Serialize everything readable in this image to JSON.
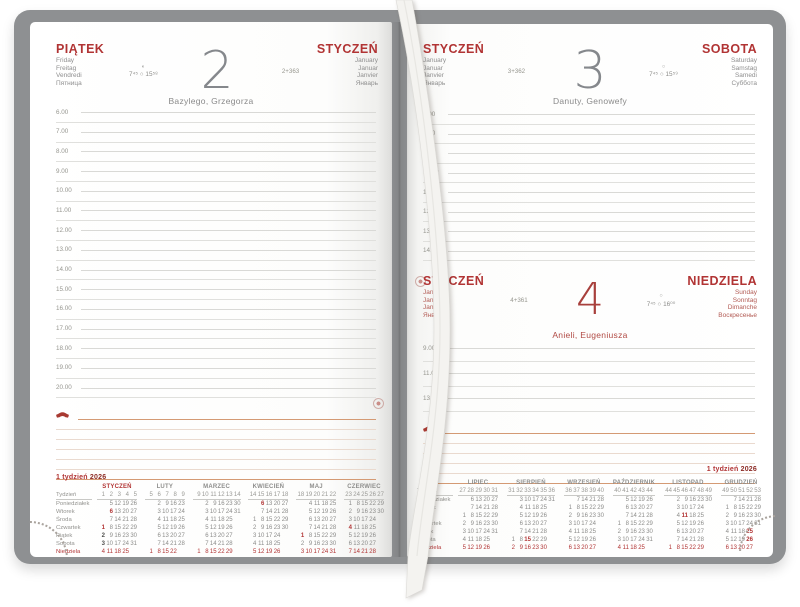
{
  "diary": {
    "week_label": {
      "text": "1 tydzień",
      "year": "2026"
    },
    "days": [
      {
        "weekday": "PIĄTEK",
        "weekday_translations": [
          "Friday",
          "Freitag",
          "Vendredi",
          "Пятница"
        ],
        "month": "STYCZEŃ",
        "month_translations": [
          "January",
          "Januar",
          "Janvier",
          "Январь"
        ],
        "number": "2",
        "ordinal": "2+363",
        "moon": "◐",
        "sunrise": "7⁴⁵",
        "sun": "○",
        "sunset": "15⁵⁸",
        "name_days": "Bazylego, Grzegorza",
        "hours": [
          "6.00",
          "7.00",
          "8.00",
          "9.00",
          "10.00",
          "11.00",
          "12.00",
          "13.00",
          "14.00",
          "15.00",
          "16.00",
          "17.00",
          "18.00",
          "19.00",
          "20.00"
        ]
      },
      {
        "weekday": "SOBOTA",
        "weekday_translations": [
          "Saturday",
          "Samstag",
          "Samedi",
          "Суббота"
        ],
        "month": "STYCZEŃ",
        "month_translations": [
          "January",
          "Januar",
          "Janvier",
          "Январь"
        ],
        "number": "3",
        "ordinal": "3+362",
        "moon": "○",
        "sunrise": "7⁴⁵",
        "sun": "○",
        "sunset": "15⁵⁹",
        "name_days": "Danuty, Genowefy",
        "hours": [
          "7.00",
          "8.00",
          "9.00",
          "10.00",
          "11.00",
          "12.00",
          "13.00",
          "14.00"
        ]
      },
      {
        "weekday": "NIEDZIELA",
        "weekday_translations": [
          "Sunday",
          "Sonntag",
          "Dimanche",
          "Воскресенье"
        ],
        "month": "STYCZEŃ",
        "month_translations": [
          "January",
          "Januar",
          "Janvier",
          "Январь"
        ],
        "number": "4",
        "ordinal": "4+361",
        "moon": "○",
        "sunrise": "7⁴⁵",
        "sun": "○",
        "sunset": "16⁰⁰",
        "name_days": "Anieli, Eugeniusza",
        "hours": [
          "9.00",
          "11.00",
          "13.00"
        ]
      }
    ],
    "calendar_block": {
      "weekday_labels": [
        "Tydzień",
        "Poniedziałek",
        "Wtorek",
        "Środa",
        "Czwartek",
        "Piątek",
        "Sobota",
        "Niedziela"
      ],
      "left_months": [
        {
          "name": "STYCZEŃ",
          "current": true,
          "weeks": [
            "1",
            "2",
            "3",
            "4",
            "5"
          ],
          "rows": [
            [
              "",
              "5",
              "12",
              "19",
              "26"
            ],
            [
              "",
              "6",
              "13",
              "20",
              "27"
            ],
            [
              "",
              "7",
              "14",
              "21",
              "28"
            ],
            [
              "1",
              "8",
              "15",
              "22",
              "29"
            ],
            [
              "2",
              "9",
              "16",
              "23",
              "30"
            ],
            [
              "3",
              "10",
              "17",
              "24",
              "31"
            ],
            [
              "4",
              "11",
              "18",
              "25",
              ""
            ]
          ],
          "red": [
            "1",
            "6"
          ],
          "cur": [
            "2",
            "3"
          ]
        },
        {
          "name": "LUTY",
          "weeks": [
            "5",
            "6",
            "7",
            "8",
            "9"
          ],
          "rows": [
            [
              "",
              "2",
              "9",
              "16",
              "23"
            ],
            [
              "",
              "3",
              "10",
              "17",
              "24"
            ],
            [
              "",
              "4",
              "11",
              "18",
              "25"
            ],
            [
              "",
              "5",
              "12",
              "19",
              "26"
            ],
            [
              "",
              "6",
              "13",
              "20",
              "27"
            ],
            [
              "",
              "7",
              "14",
              "21",
              "28"
            ],
            [
              "1",
              "8",
              "15",
              "22",
              ""
            ]
          ],
          "red": [],
          "cur": []
        },
        {
          "name": "MARZEC",
          "weeks": [
            "9",
            "10",
            "11",
            "12",
            "13",
            "14"
          ],
          "rows": [
            [
              "",
              "2",
              "9",
              "16",
              "23",
              "30"
            ],
            [
              "",
              "3",
              "10",
              "17",
              "24",
              "31"
            ],
            [
              "",
              "4",
              "11",
              "18",
              "25",
              ""
            ],
            [
              "",
              "5",
              "12",
              "19",
              "26",
              ""
            ],
            [
              "",
              "6",
              "13",
              "20",
              "27",
              ""
            ],
            [
              "",
              "7",
              "14",
              "21",
              "28",
              ""
            ],
            [
              "1",
              "8",
              "15",
              "22",
              "29",
              ""
            ]
          ],
          "red": [],
          "cur": []
        },
        {
          "name": "KWIECIEŃ",
          "weeks": [
            "14",
            "15",
            "16",
            "17",
            "18"
          ],
          "rows": [
            [
              "",
              "6",
              "13",
              "20",
              "27"
            ],
            [
              "",
              "7",
              "14",
              "21",
              "28"
            ],
            [
              "1",
              "8",
              "15",
              "22",
              "29"
            ],
            [
              "2",
              "9",
              "16",
              "23",
              "30"
            ],
            [
              "3",
              "10",
              "17",
              "24",
              ""
            ],
            [
              "4",
              "11",
              "18",
              "25",
              ""
            ],
            [
              "5",
              "12",
              "19",
              "26",
              ""
            ]
          ],
          "red": [
            "6"
          ],
          "cur": []
        },
        {
          "name": "MAJ",
          "weeks": [
            "18",
            "19",
            "20",
            "21",
            "22"
          ],
          "rows": [
            [
              "",
              "4",
              "11",
              "18",
              "25"
            ],
            [
              "",
              "5",
              "12",
              "19",
              "26"
            ],
            [
              "",
              "6",
              "13",
              "20",
              "27"
            ],
            [
              "",
              "7",
              "14",
              "21",
              "28"
            ],
            [
              "1",
              "8",
              "15",
              "22",
              "29"
            ],
            [
              "2",
              "9",
              "16",
              "23",
              "30"
            ],
            [
              "3",
              "10",
              "17",
              "24",
              "31"
            ]
          ],
          "red": [
            "1"
          ],
          "cur": []
        },
        {
          "name": "CZERWIEC",
          "weeks": [
            "23",
            "24",
            "25",
            "26",
            "27"
          ],
          "rows": [
            [
              "1",
              "8",
              "15",
              "22",
              "29"
            ],
            [
              "2",
              "9",
              "16",
              "23",
              "30"
            ],
            [
              "3",
              "10",
              "17",
              "24",
              ""
            ],
            [
              "4",
              "11",
              "18",
              "25",
              ""
            ],
            [
              "5",
              "12",
              "19",
              "26",
              ""
            ],
            [
              "6",
              "13",
              "20",
              "27",
              ""
            ],
            [
              "7",
              "14",
              "21",
              "28",
              ""
            ]
          ],
          "red": [
            "4"
          ],
          "cur": []
        }
      ],
      "right_months": [
        {
          "name": "LIPIEC",
          "weeks": [
            "27",
            "28",
            "29",
            "30",
            "31"
          ],
          "rows": [
            [
              "",
              "6",
              "13",
              "20",
              "27"
            ],
            [
              "",
              "7",
              "14",
              "21",
              "28"
            ],
            [
              "1",
              "8",
              "15",
              "22",
              "29"
            ],
            [
              "2",
              "9",
              "16",
              "23",
              "30"
            ],
            [
              "3",
              "10",
              "17",
              "24",
              "31"
            ],
            [
              "4",
              "11",
              "18",
              "25",
              ""
            ],
            [
              "5",
              "12",
              "19",
              "26",
              ""
            ]
          ],
          "red": [],
          "cur": []
        },
        {
          "name": "SIERPIEŃ",
          "weeks": [
            "31",
            "32",
            "33",
            "34",
            "35",
            "36"
          ],
          "rows": [
            [
              "",
              "3",
              "10",
              "17",
              "24",
              "31"
            ],
            [
              "",
              "4",
              "11",
              "18",
              "25",
              ""
            ],
            [
              "",
              "5",
              "12",
              "19",
              "26",
              ""
            ],
            [
              "",
              "6",
              "13",
              "20",
              "27",
              ""
            ],
            [
              "",
              "7",
              "14",
              "21",
              "28",
              ""
            ],
            [
              "1",
              "8",
              "15",
              "22",
              "29",
              ""
            ],
            [
              "2",
              "9",
              "16",
              "23",
              "30",
              ""
            ]
          ],
          "red": [
            "15"
          ],
          "cur": []
        },
        {
          "name": "WRZESIEŃ",
          "weeks": [
            "36",
            "37",
            "38",
            "39",
            "40"
          ],
          "rows": [
            [
              "",
              "7",
              "14",
              "21",
              "28"
            ],
            [
              "1",
              "8",
              "15",
              "22",
              "29"
            ],
            [
              "2",
              "9",
              "16",
              "23",
              "30"
            ],
            [
              "3",
              "10",
              "17",
              "24",
              ""
            ],
            [
              "4",
              "11",
              "18",
              "25",
              ""
            ],
            [
              "5",
              "12",
              "19",
              "26",
              ""
            ],
            [
              "6",
              "13",
              "20",
              "27",
              ""
            ]
          ],
          "red": [],
          "cur": []
        },
        {
          "name": "PAŹDZIERNIK",
          "weeks": [
            "40",
            "41",
            "42",
            "43",
            "44"
          ],
          "rows": [
            [
              "",
              "5",
              "12",
              "19",
              "26"
            ],
            [
              "",
              "6",
              "13",
              "20",
              "27"
            ],
            [
              "",
              "7",
              "14",
              "21",
              "28"
            ],
            [
              "1",
              "8",
              "15",
              "22",
              "29"
            ],
            [
              "2",
              "9",
              "16",
              "23",
              "30"
            ],
            [
              "3",
              "10",
              "17",
              "24",
              "31"
            ],
            [
              "4",
              "11",
              "18",
              "25",
              ""
            ]
          ],
          "red": [],
          "cur": []
        },
        {
          "name": "LISTOPAD",
          "weeks": [
            "44",
            "45",
            "46",
            "47",
            "48",
            "49"
          ],
          "rows": [
            [
              "",
              "2",
              "9",
              "16",
              "23",
              "30"
            ],
            [
              "",
              "3",
              "10",
              "17",
              "24",
              ""
            ],
            [
              "",
              "4",
              "11",
              "18",
              "25",
              ""
            ],
            [
              "",
              "5",
              "12",
              "19",
              "26",
              ""
            ],
            [
              "",
              "6",
              "13",
              "20",
              "27",
              ""
            ],
            [
              "",
              "7",
              "14",
              "21",
              "28",
              ""
            ],
            [
              "1",
              "8",
              "15",
              "22",
              "29",
              ""
            ]
          ],
          "red": [
            "11"
          ],
          "cur": []
        },
        {
          "name": "GRUDZIEŃ",
          "weeks": [
            "49",
            "50",
            "51",
            "52",
            "53"
          ],
          "rows": [
            [
              "",
              "7",
              "14",
              "21",
              "28"
            ],
            [
              "1",
              "8",
              "15",
              "22",
              "29"
            ],
            [
              "2",
              "9",
              "16",
              "23",
              "30"
            ],
            [
              "3",
              "10",
              "17",
              "24",
              "31"
            ],
            [
              "4",
              "11",
              "18",
              "25",
              ""
            ],
            [
              "5",
              "12",
              "19",
              "26",
              ""
            ],
            [
              "6",
              "13",
              "20",
              "27",
              ""
            ]
          ],
          "red": [
            "25",
            "26"
          ],
          "cur": []
        }
      ]
    }
  }
}
